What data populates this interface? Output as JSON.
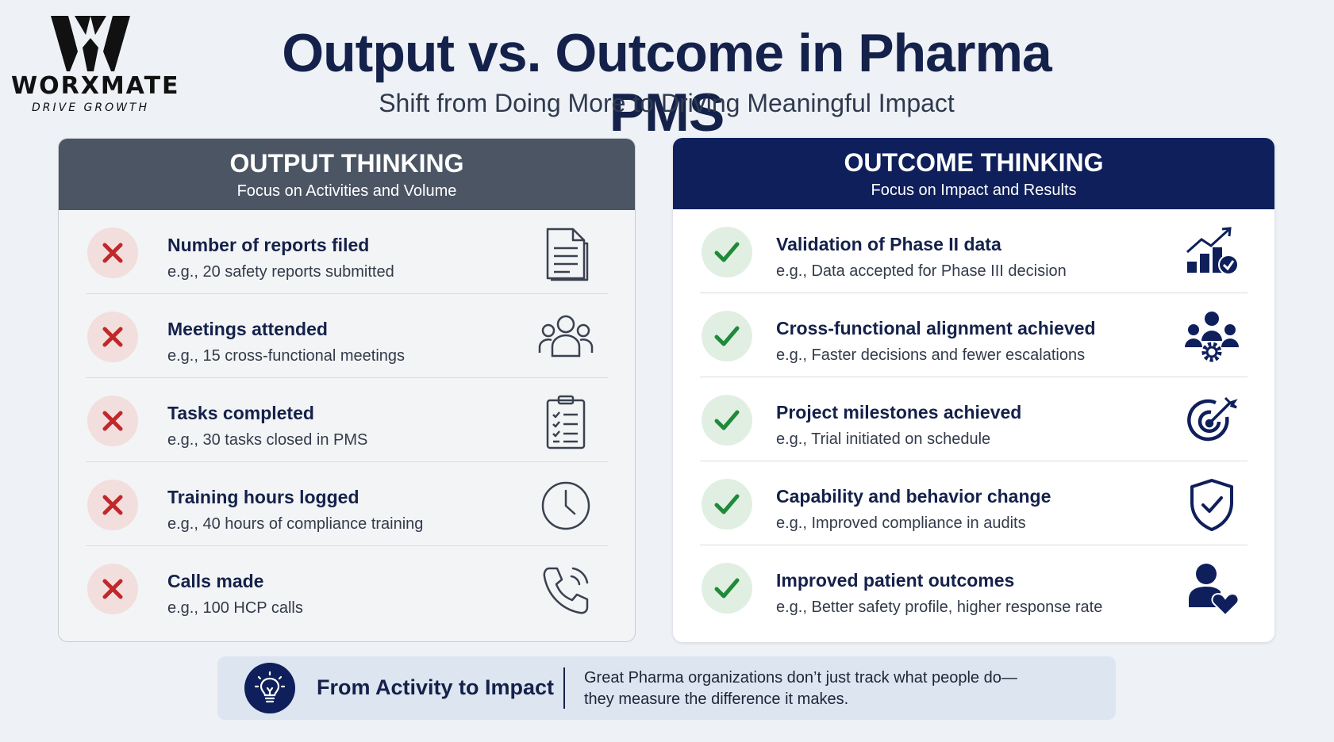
{
  "logo": {
    "name": "WORXMATE",
    "tagline": "DRIVE GROWTH"
  },
  "header": {
    "title": "Output vs. Outcome in Pharma PMS",
    "subtitle": "Shift from Doing More to Driving Meaningful Impact"
  },
  "output": {
    "title": "OUTPUT THINKING",
    "subtitle": "Focus on Activities and Volume",
    "items": [
      {
        "title": "Number of reports filed",
        "example": "e.g., 20 safety reports submitted",
        "icon": "document-icon"
      },
      {
        "title": "Meetings attended",
        "example": "e.g., 15 cross-functional meetings",
        "icon": "people-group-icon"
      },
      {
        "title": "Tasks completed",
        "example": "e.g., 30 tasks closed in PMS",
        "icon": "clipboard-checklist-icon"
      },
      {
        "title": "Training hours logged",
        "example": "e.g., 40 hours of compliance training",
        "icon": "clock-icon"
      },
      {
        "title": "Calls made",
        "example": "e.g., 100 HCP calls",
        "icon": "phone-icon"
      }
    ]
  },
  "outcome": {
    "title": "OUTCOME THINKING",
    "subtitle": "Focus on Impact and Results",
    "items": [
      {
        "title": "Validation of Phase II data",
        "example": "e.g., Data accepted for Phase III decision",
        "icon": "chart-check-icon"
      },
      {
        "title": "Cross-functional alignment achieved",
        "example": "e.g., Faster decisions and fewer escalations",
        "icon": "team-gear-icon"
      },
      {
        "title": "Project milestones achieved",
        "example": "e.g., Trial initiated on schedule",
        "icon": "target-icon"
      },
      {
        "title": "Capability and behavior change",
        "example": "e.g., Improved compliance in audits",
        "icon": "shield-check-icon"
      },
      {
        "title": "Improved patient outcomes",
        "example": "e.g., Better safety profile, higher response rate",
        "icon": "person-heart-icon"
      }
    ]
  },
  "banner": {
    "title": "From Activity to Impact",
    "text_line1": "Great Pharma organizations don’t just track what people do—",
    "text_line2": "they measure the difference it makes.",
    "icon": "lightbulb-icon"
  },
  "colors": {
    "navy": "#0e1f5b",
    "slate": "#4b5563",
    "cross_red": "#c0282a",
    "check_green": "#1f8a3a"
  }
}
